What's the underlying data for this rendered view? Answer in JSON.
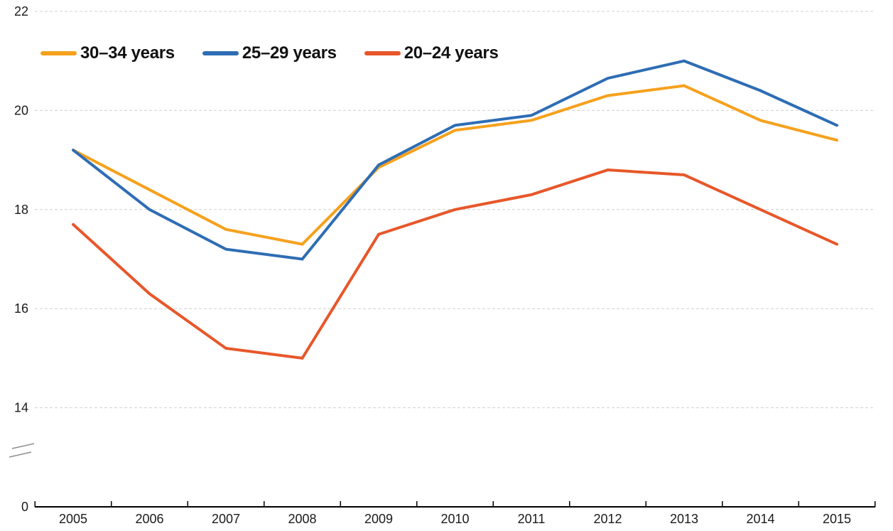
{
  "chart_data": {
    "type": "line",
    "title": "",
    "xlabel": "",
    "ylabel": "",
    "categories": [
      "2005",
      "2006",
      "2007",
      "2008",
      "2009",
      "2010",
      "2011",
      "2012",
      "2013",
      "2014",
      "2015"
    ],
    "series": [
      {
        "name": "30–34 years",
        "color": "#F5A11D",
        "values": [
          19.2,
          18.4,
          17.6,
          17.3,
          18.85,
          19.6,
          19.8,
          20.3,
          20.5,
          19.8,
          19.4
        ]
      },
      {
        "name": "25–29 years",
        "color": "#2E6DB4",
        "values": [
          19.2,
          18.0,
          17.2,
          17.0,
          18.9,
          19.7,
          19.9,
          20.65,
          21.0,
          20.4,
          19.7
        ]
      },
      {
        "name": "20–24 years",
        "color": "#E7572A",
        "values": [
          17.7,
          16.3,
          15.2,
          15.0,
          17.5,
          18.0,
          18.3,
          18.8,
          18.7,
          18.0,
          17.3
        ]
      }
    ],
    "y_axis": {
      "ticks": [
        22,
        20,
        18,
        16,
        14,
        0
      ],
      "broken_axis": true,
      "break_between": [
        0,
        14
      ]
    },
    "grid": {
      "horizontal_dashed": true,
      "color": "#cfcfcf"
    },
    "legend_position": "top-left",
    "colors": {
      "axis_line": "#000000",
      "tick_label": "#1a1a1a",
      "break_symbol": "#8f8f8f"
    }
  }
}
